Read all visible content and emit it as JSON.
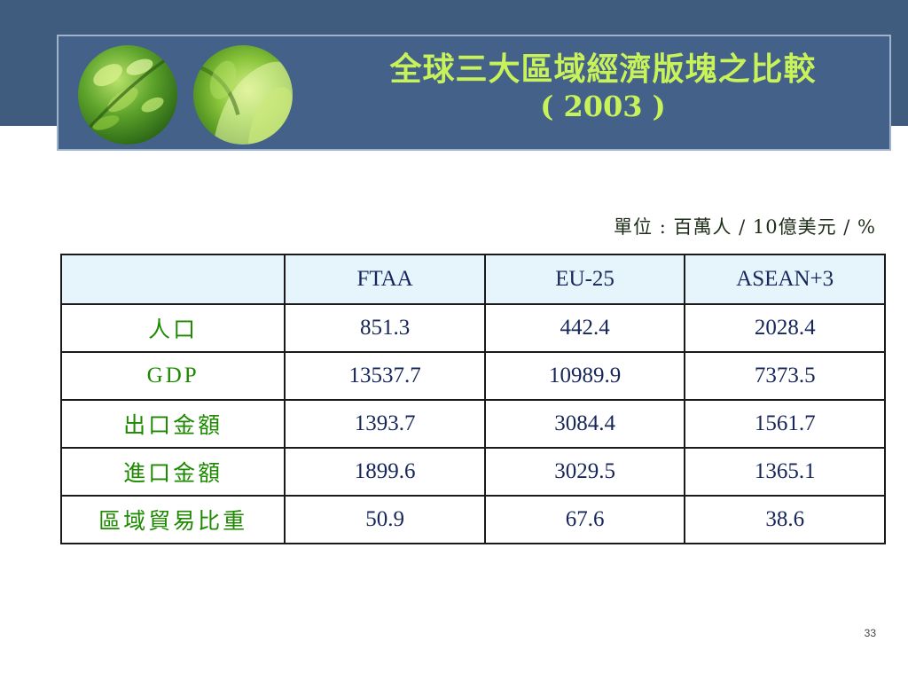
{
  "slide": {
    "title_line1": "全球三大區域經濟版塊之比較",
    "title_line2": "( 2003 )",
    "unit_note": "單位 : 百萬人 / 10億美元 / %",
    "page_number": "33"
  },
  "table": {
    "headers": [
      "",
      "FTAA",
      "EU-25",
      "ASEAN+3"
    ],
    "rows": [
      {
        "label": "人口",
        "values": [
          "851.3",
          "442.4",
          "2028.4"
        ]
      },
      {
        "label": "GDP",
        "values": [
          "13537.7",
          "10989.9",
          "7373.5"
        ]
      },
      {
        "label": "出口金額",
        "values": [
          "1393.7",
          "3084.4",
          "1561.7"
        ]
      },
      {
        "label": "進口金額",
        "values": [
          "1899.6",
          "3029.5",
          "1365.1"
        ]
      },
      {
        "label": "區域貿易比重",
        "values": [
          "50.9",
          "67.6",
          "38.6"
        ]
      }
    ]
  },
  "colors": {
    "title_text": "#c8f25a",
    "banner_background": "#44618a",
    "row_label_text": "#1d8a00",
    "value_text": "#16265a",
    "header_fill": "#e6f4fc"
  },
  "icons": [
    "leaf-drops-image",
    "leaf-curl-image"
  ]
}
